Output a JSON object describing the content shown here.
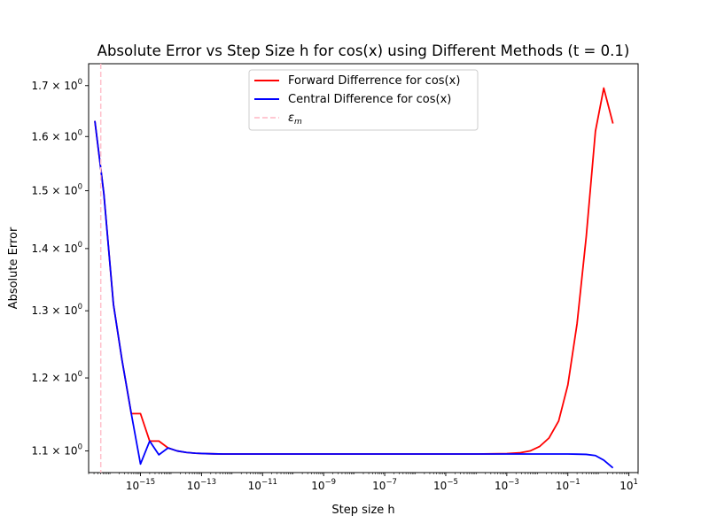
{
  "chart_data": {
    "type": "line",
    "title": "Absolute Error vs Step Size h for cos(x) using Different Methods (t = 0.1)",
    "xlabel": "Step size h",
    "ylabel": "Absolute Error",
    "xscale": "log",
    "yscale": "log",
    "xlim": [
      2e-17,
      20
    ],
    "ylim": [
      1.072,
      1.745
    ],
    "xticks": [
      {
        "value": 1e-15,
        "base": "10",
        "exp": "−15"
      },
      {
        "value": 1e-13,
        "base": "10",
        "exp": "−13"
      },
      {
        "value": 1e-11,
        "base": "10",
        "exp": "−11"
      },
      {
        "value": 1e-09,
        "base": "10",
        "exp": "−9"
      },
      {
        "value": 1e-07,
        "base": "10",
        "exp": "−7"
      },
      {
        "value": 1e-05,
        "base": "10",
        "exp": "−5"
      },
      {
        "value": 0.001,
        "base": "10",
        "exp": "−3"
      },
      {
        "value": 0.1,
        "base": "10",
        "exp": "−1"
      },
      {
        "value": 10,
        "base": "10",
        "exp": "1"
      }
    ],
    "yticks": [
      {
        "value": 1.1,
        "mant": "1.1",
        "times": "×",
        "base": "10",
        "exp": "0"
      },
      {
        "value": 1.2,
        "mant": "1.2",
        "times": "×",
        "base": "10",
        "exp": "0"
      },
      {
        "value": 1.3,
        "mant": "1.3",
        "times": "×",
        "base": "10",
        "exp": "0"
      },
      {
        "value": 1.4,
        "mant": "1.4",
        "times": "×",
        "base": "10",
        "exp": "0"
      },
      {
        "value": 1.5,
        "mant": "1.5",
        "times": "×",
        "base": "10",
        "exp": "0"
      },
      {
        "value": 1.6,
        "mant": "1.6",
        "times": "×",
        "base": "10",
        "exp": "0"
      },
      {
        "value": 1.7,
        "mant": "1.7",
        "times": "×",
        "base": "10",
        "exp": "0"
      }
    ],
    "legend_position": "top-center",
    "grid": false,
    "series": [
      {
        "name": "Forward Differrence for cos(x)",
        "color": "#ff0000",
        "x": [
          3.2e-17,
          6.3e-17,
          1.3e-16,
          2.5e-16,
          5e-16,
          1e-15,
          2e-15,
          4e-15,
          8e-15,
          1.6e-14,
          3.2e-14,
          6.3e-14,
          1.3e-13,
          2.5e-13,
          5e-13,
          1e-12,
          1e-11,
          1e-10,
          1e-09,
          1e-08,
          1e-07,
          1e-06,
          1e-05,
          0.0001,
          0.0003,
          0.001,
          0.0026,
          0.0058,
          0.012,
          0.024,
          0.05,
          0.1,
          0.2,
          0.4,
          0.8,
          1.5,
          3
        ],
        "y": [
          1.63,
          1.495,
          1.31,
          1.225,
          1.15,
          1.15,
          1.113,
          1.113,
          1.104,
          1.1,
          1.098,
          1.097,
          1.0965,
          1.0962,
          1.096,
          1.096,
          1.096,
          1.096,
          1.096,
          1.096,
          1.096,
          1.096,
          1.096,
          1.096,
          1.0962,
          1.0965,
          1.0975,
          1.1,
          1.106,
          1.117,
          1.14,
          1.19,
          1.28,
          1.42,
          1.61,
          1.695,
          1.625
        ]
      },
      {
        "name": "Central Difference for cos(x)",
        "color": "#0000ff",
        "x": [
          3.2e-17,
          6.3e-17,
          1.3e-16,
          2.5e-16,
          5e-16,
          1e-15,
          2e-15,
          4e-15,
          8e-15,
          1.6e-14,
          3.2e-14,
          6.3e-14,
          1.3e-13,
          2.5e-13,
          5e-13,
          1e-12,
          1e-11,
          1e-10,
          1e-09,
          1e-08,
          1e-07,
          1e-06,
          1e-05,
          0.0001,
          0.001,
          0.01,
          0.05,
          0.1,
          0.2,
          0.4,
          0.8,
          1.5,
          3
        ],
        "y": [
          1.63,
          1.495,
          1.31,
          1.225,
          1.15,
          1.083,
          1.113,
          1.095,
          1.104,
          1.1,
          1.098,
          1.097,
          1.0965,
          1.0962,
          1.096,
          1.096,
          1.096,
          1.096,
          1.096,
          1.096,
          1.096,
          1.096,
          1.096,
          1.096,
          1.096,
          1.096,
          1.096,
          1.096,
          1.0958,
          1.0955,
          1.094,
          1.088,
          1.078
        ]
      }
    ],
    "annotations": [
      {
        "type": "vline",
        "x": 5e-17,
        "color": "#ffc0cb",
        "dash": true,
        "name": "ε_m",
        "label_base": "ε",
        "label_sub": "m"
      }
    ]
  }
}
